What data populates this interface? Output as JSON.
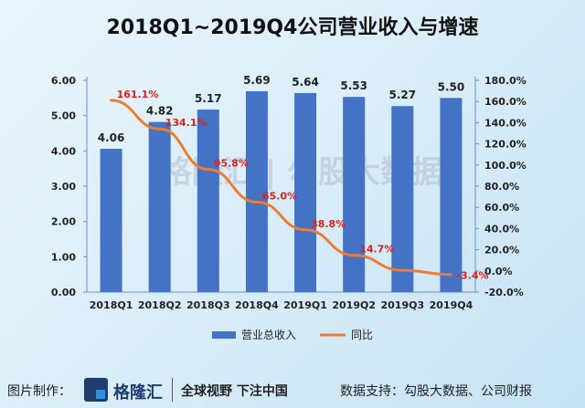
{
  "title": "2018Q1~2019Q4公司营业收入与增速",
  "watermark": "格隆汇 | 勾股大数据",
  "footer": {
    "made_by": "图片制作：",
    "brand": "格隆汇",
    "slogan": "全球视野 下注中国",
    "source": "数据支持：勾股大数据、公司财报"
  },
  "colors": {
    "bar": "#4472c4",
    "line": "#ed7d31",
    "pct_label": "#e0201b"
  },
  "chart_data": {
    "type": "bar",
    "title": "2018Q1~2019Q4公司营业收入与增速",
    "categories": [
      "2018Q1",
      "2018Q2",
      "2018Q3",
      "2018Q4",
      "2019Q1",
      "2019Q2",
      "2019Q3",
      "2019Q4"
    ],
    "series": [
      {
        "name": "营业总收入",
        "type": "bar",
        "axis": "left",
        "values": [
          4.06,
          4.82,
          5.17,
          5.69,
          5.64,
          5.53,
          5.27,
          5.5
        ],
        "labels": [
          "4.06",
          "4.82",
          "5.17",
          "5.69",
          "5.64",
          "5.53",
          "5.27",
          "5.50"
        ]
      },
      {
        "name": "同比",
        "type": "line",
        "axis": "right",
        "values": [
          161.1,
          134.1,
          95.8,
          65.0,
          38.8,
          14.7,
          0.5,
          -3.4
        ],
        "labels": [
          "161.1%",
          "134.1%",
          "95.8%",
          "65.0%",
          "38.8%",
          "14.7%",
          "",
          "-3.4%"
        ]
      }
    ],
    "left_axis": {
      "ylim": [
        0,
        6
      ],
      "ticks": [
        "0.00",
        "1.00",
        "2.00",
        "3.00",
        "4.00",
        "5.00",
        "6.00"
      ]
    },
    "right_axis": {
      "ylim": [
        -20,
        180
      ],
      "ticks": [
        "-20.0%",
        "0.0%",
        "20.0%",
        "40.0%",
        "60.0%",
        "80.0%",
        "100.0%",
        "120.0%",
        "140.0%",
        "160.0%",
        "180.0%"
      ]
    },
    "legend": "bottom"
  }
}
